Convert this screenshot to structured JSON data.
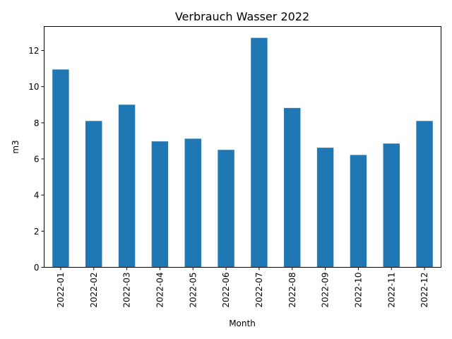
{
  "chart_data": {
    "type": "bar",
    "title": "Verbrauch Wasser 2022",
    "xlabel": "Month",
    "ylabel": "m3",
    "categories": [
      "2022-01",
      "2022-02",
      "2022-03",
      "2022-04",
      "2022-05",
      "2022-06",
      "2022-07",
      "2022-08",
      "2022-09",
      "2022-10",
      "2022-11",
      "2022-12"
    ],
    "values": [
      10.95,
      8.1,
      9.0,
      6.97,
      7.12,
      6.5,
      12.7,
      8.82,
      6.62,
      6.22,
      6.85,
      8.1
    ],
    "ylim": [
      0,
      13.33
    ],
    "yticks": [
      0,
      2,
      4,
      6,
      8,
      10,
      12
    ],
    "grid": false,
    "legend": "none",
    "bar_color": "#1f77b4"
  }
}
